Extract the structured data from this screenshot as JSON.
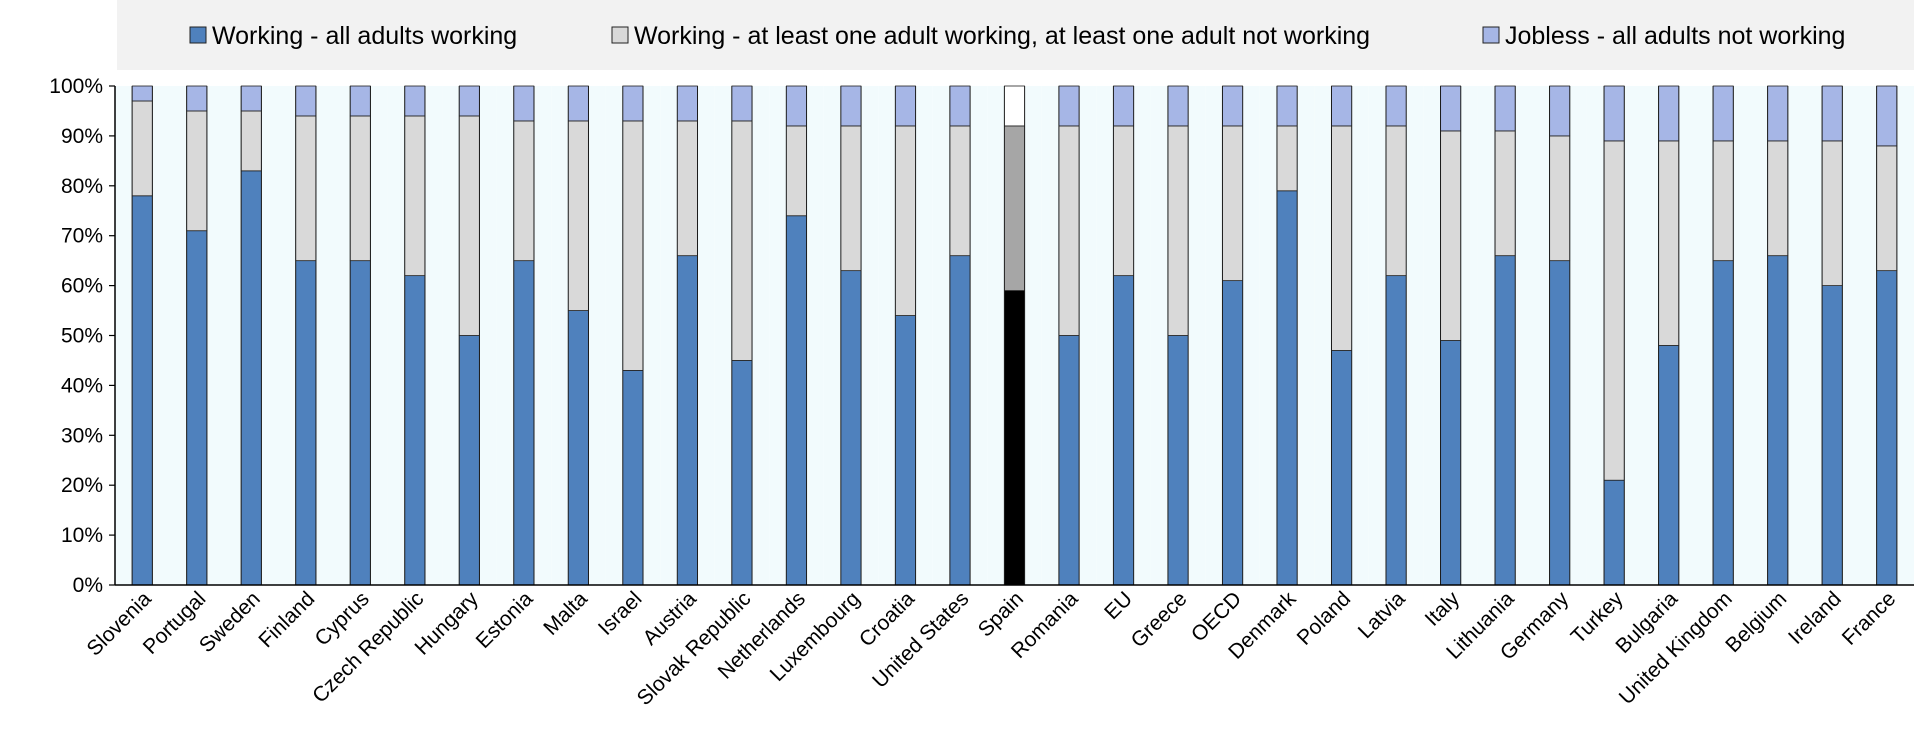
{
  "chart_data": {
    "type": "bar",
    "stacked": true,
    "title": "",
    "xlabel": "",
    "ylabel": "",
    "ylim": [
      0,
      100
    ],
    "yticks": [
      "0%",
      "10%",
      "20%",
      "30%",
      "40%",
      "50%",
      "60%",
      "70%",
      "80%",
      "90%",
      "100%"
    ],
    "legend_position": "top",
    "grid": false,
    "highlight_category": "Spain",
    "categories": [
      "Slovenia",
      "Portugal",
      "Sweden",
      "Finland",
      "Cyprus",
      "Czech Republic",
      "Hungary",
      "Estonia",
      "Malta",
      "Israel",
      "Austria",
      "Slovak Republic",
      "Netherlands",
      "Luxembourg",
      "Croatia",
      "United States",
      "Spain",
      "Romania",
      "EU",
      "Greece",
      "OECD",
      "Denmark",
      "Poland",
      "Latvia",
      "Italy",
      "Lithuania",
      "Germany",
      "Turkey",
      "Bulgaria",
      "United Kingdom",
      "Belgium",
      "Ireland",
      "France"
    ],
    "series": [
      {
        "name": "Working - all adults working",
        "color": "#4f81bd",
        "values": [
          78,
          71,
          83,
          65,
          65,
          62,
          50,
          65,
          55,
          43,
          66,
          45,
          74,
          63,
          54,
          66,
          59,
          50,
          62,
          50,
          61,
          79,
          47,
          62,
          49,
          66,
          65,
          21,
          48,
          65,
          66,
          60,
          63
        ]
      },
      {
        "name": "Working - at least one adult working, at least one adult not working",
        "color": "#d9d9d9",
        "values": [
          19,
          24,
          12,
          29,
          29,
          32,
          44,
          28,
          38,
          50,
          27,
          48,
          18,
          29,
          38,
          26,
          33,
          42,
          30,
          42,
          31,
          13,
          45,
          30,
          42,
          25,
          25,
          68,
          41,
          24,
          23,
          29,
          25
        ]
      },
      {
        "name": "Jobless - all adults not working",
        "color": "#a6b6e6",
        "values": [
          3,
          5,
          5,
          6,
          6,
          6,
          6,
          7,
          7,
          7,
          7,
          7,
          8,
          8,
          8,
          8,
          8,
          8,
          8,
          8,
          8,
          8,
          8,
          8,
          9,
          9,
          10,
          11,
          11,
          11,
          11,
          11,
          12
        ]
      }
    ],
    "highlight_colors": [
      "#000000",
      "#a6a6a6",
      "#ffffff"
    ],
    "background_stripe_color": "#f2fbfd"
  }
}
